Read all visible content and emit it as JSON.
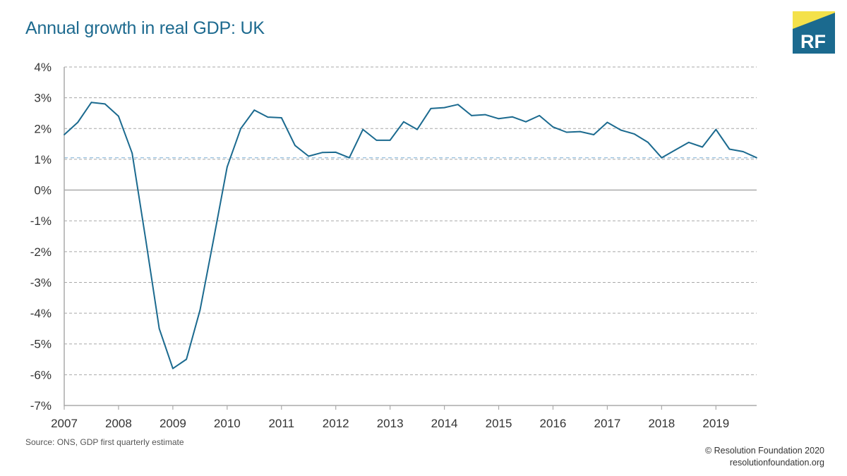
{
  "title": "Annual growth in real GDP: UK",
  "logo": {
    "text": "RF",
    "colors": {
      "blue": "#1b6a8f",
      "yellow": "#f4e14a"
    }
  },
  "source": "Source: ONS, GDP first quarterly estimate",
  "footer": {
    "copyright": "© Resolution Foundation 2020",
    "url": "resolutionfoundation.org"
  },
  "chart_data": {
    "type": "line",
    "title": "Annual growth in real GDP: UK",
    "xlabel": "",
    "ylabel": "",
    "xlim": [
      2007,
      2019.75
    ],
    "ylim": [
      -7,
      4
    ],
    "y_ticks": [
      4,
      3,
      2,
      1,
      0,
      -1,
      -2,
      -3,
      -4,
      -5,
      -6,
      -7
    ],
    "y_tick_labels": [
      "4%",
      "3%",
      "2%",
      "1%",
      "0%",
      "-1%",
      "-2%",
      "-3%",
      "-4%",
      "-5%",
      "-6%",
      "-7%"
    ],
    "x_ticks": [
      2007,
      2008,
      2009,
      2010,
      2011,
      2012,
      2013,
      2014,
      2015,
      2016,
      2017,
      2018,
      2019
    ],
    "x_tick_labels": [
      "2007",
      "2008",
      "2009",
      "2010",
      "2011",
      "2012",
      "2013",
      "2014",
      "2015",
      "2016",
      "2017",
      "2018",
      "2019"
    ],
    "grid": true,
    "reference_line": {
      "y": 1.05,
      "style": "dashed",
      "color": "#9cc3e0"
    },
    "series": [
      {
        "color": "#1b6a8f",
        "x": [
          2007.0,
          2007.25,
          2007.5,
          2007.75,
          2008.0,
          2008.25,
          2008.5,
          2008.75,
          2009.0,
          2009.25,
          2009.5,
          2009.75,
          2010.0,
          2010.25,
          2010.5,
          2010.75,
          2011.0,
          2011.25,
          2011.5,
          2011.75,
          2012.0,
          2012.25,
          2012.5,
          2012.75,
          2013.0,
          2013.25,
          2013.5,
          2013.75,
          2014.0,
          2014.25,
          2014.5,
          2014.75,
          2015.0,
          2015.25,
          2015.5,
          2015.75,
          2016.0,
          2016.25,
          2016.5,
          2016.75,
          2017.0,
          2017.25,
          2017.5,
          2017.75,
          2018.0,
          2018.25,
          2018.5,
          2018.75,
          2019.0,
          2019.25,
          2019.5,
          2019.75
        ],
        "values": [
          1.8,
          2.2,
          2.85,
          2.8,
          2.4,
          1.2,
          -1.6,
          -4.5,
          -5.8,
          -5.5,
          -3.9,
          -1.6,
          0.75,
          2.0,
          2.6,
          2.37,
          2.35,
          1.45,
          1.1,
          1.22,
          1.23,
          1.05,
          1.97,
          1.62,
          1.62,
          2.22,
          1.97,
          2.65,
          2.68,
          2.78,
          2.42,
          2.45,
          2.32,
          2.38,
          2.22,
          2.42,
          2.05,
          1.88,
          1.9,
          1.8,
          2.2,
          1.95,
          1.82,
          1.55,
          1.05,
          1.3,
          1.55,
          1.4,
          1.97,
          1.33,
          1.25,
          1.05
        ]
      }
    ]
  }
}
